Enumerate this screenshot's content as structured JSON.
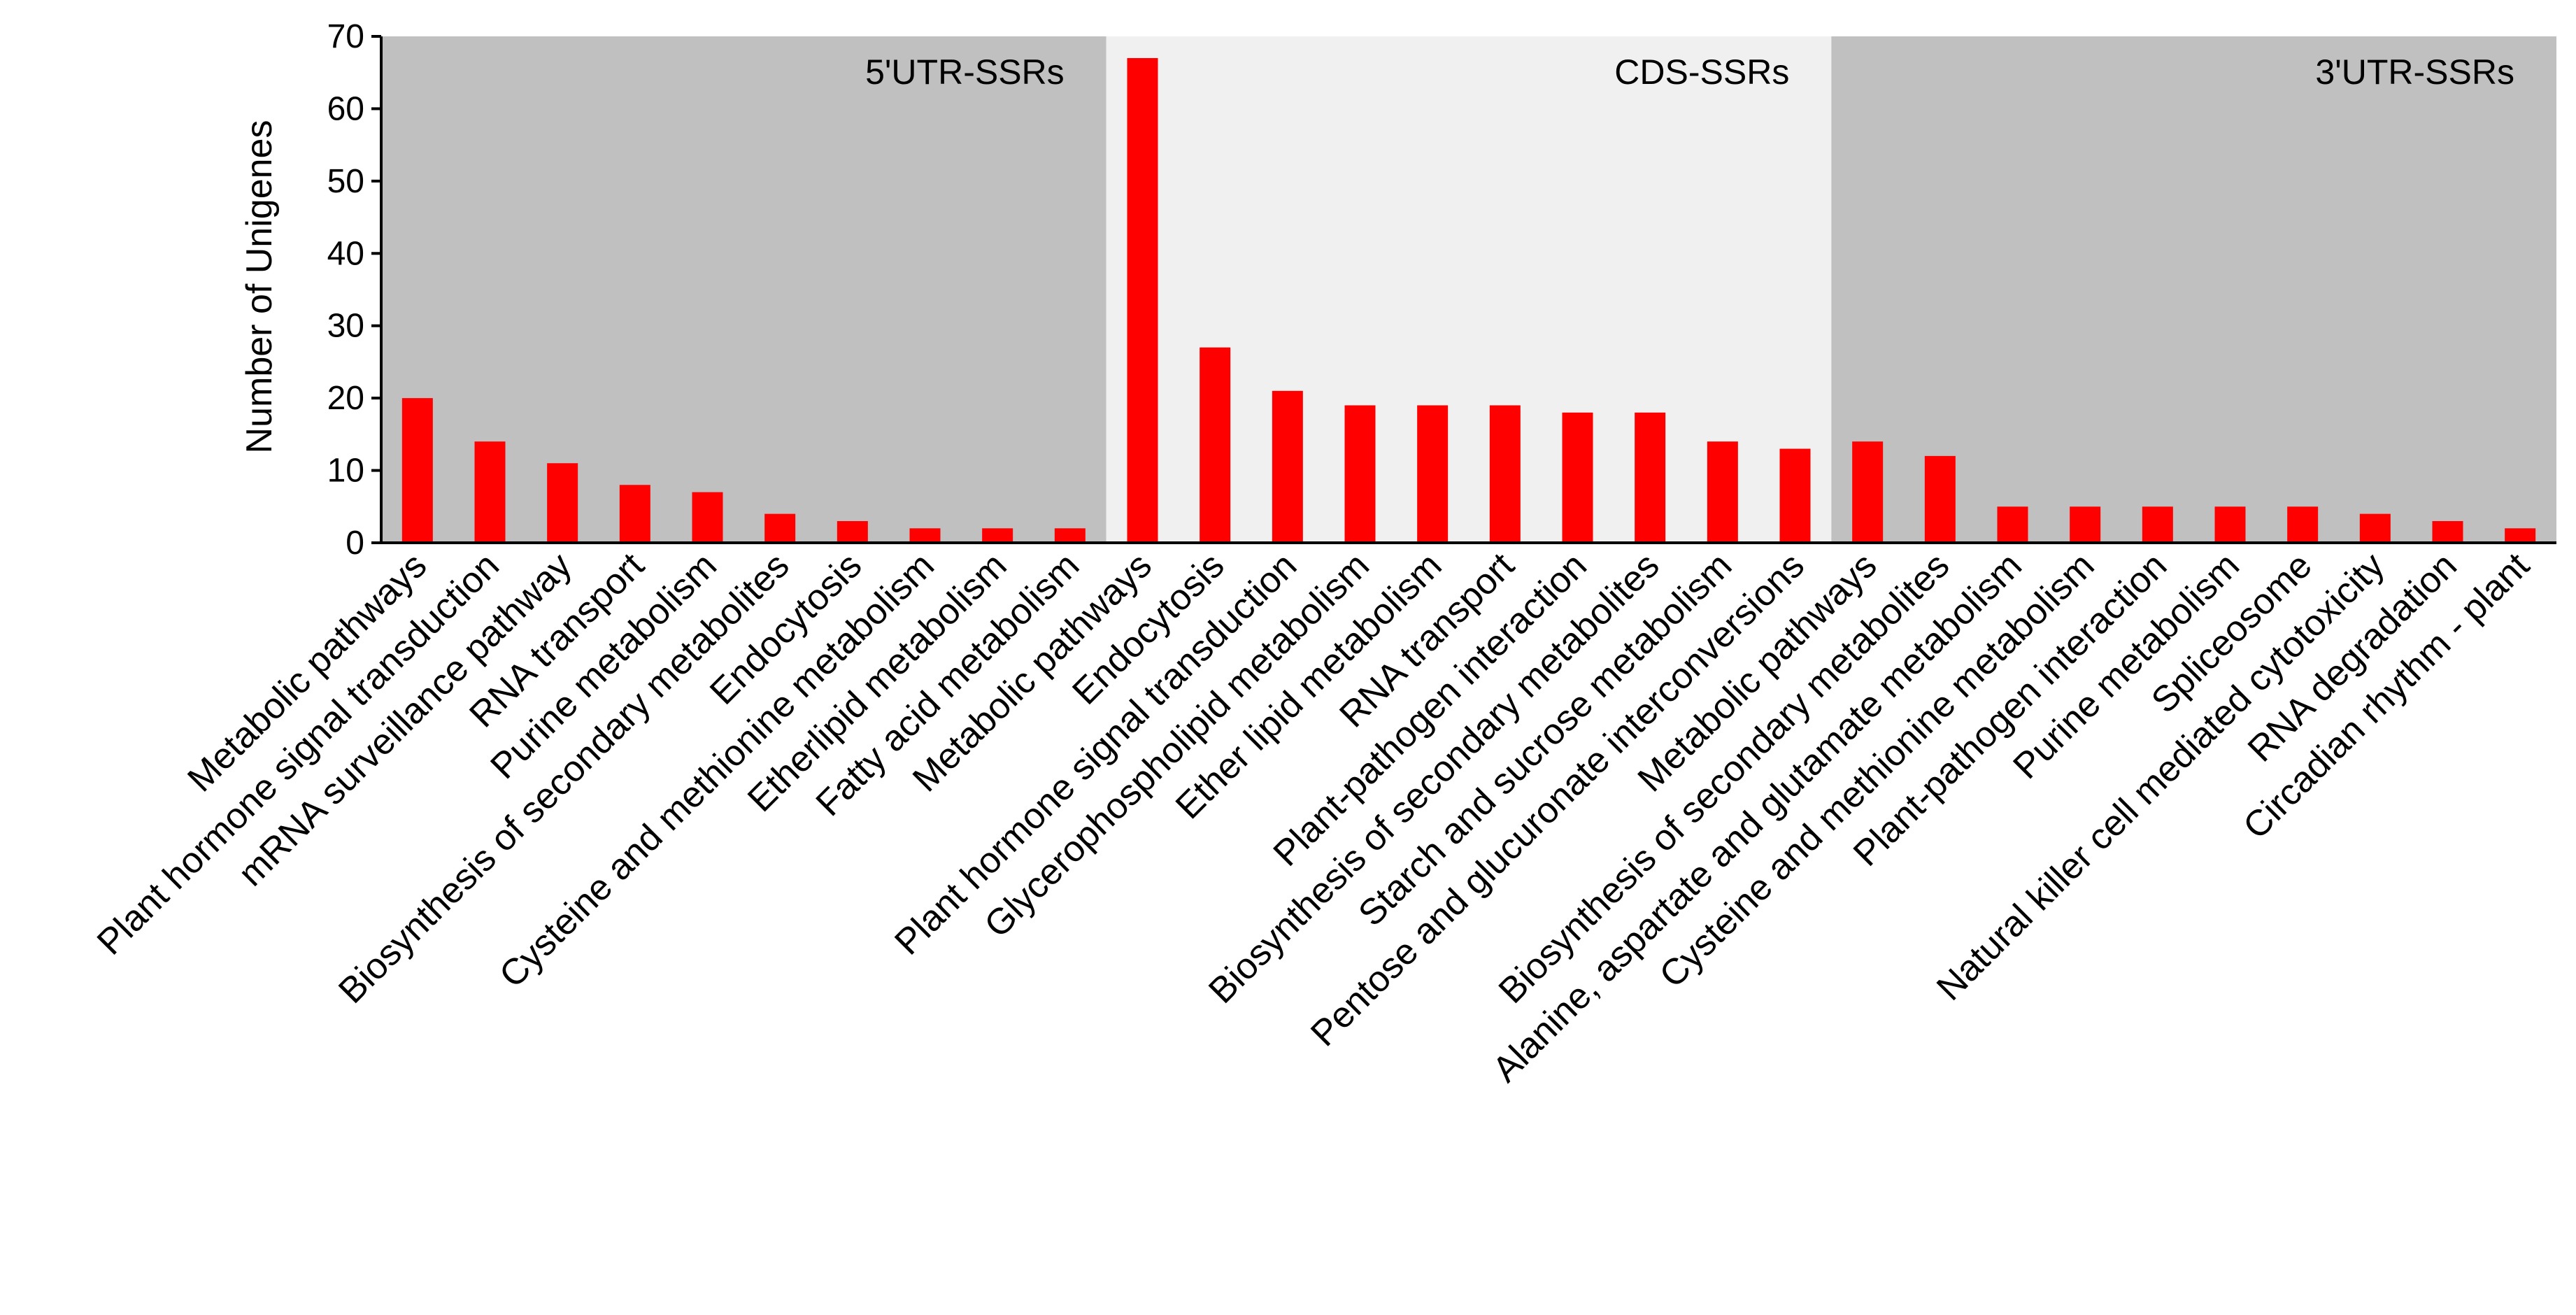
{
  "chart_data": {
    "type": "bar",
    "ylabel": "Number of Unigenes",
    "xlabel": "",
    "ylim": [
      0,
      70
    ],
    "yticks": [
      "0",
      "10",
      "20",
      "30",
      "40",
      "50",
      "60",
      "70"
    ],
    "grid": false,
    "colors": {
      "bar": "#ff0000",
      "region_dark": "#c0c0c0",
      "region_light": "#f0f0f0"
    },
    "regions": [
      {
        "label": "5'UTR-SSRs",
        "start_index": 0,
        "end_index": 9,
        "shade": "dark"
      },
      {
        "label": "CDS-SSRs",
        "start_index": 10,
        "end_index": 19,
        "shade": "light"
      },
      {
        "label": "3'UTR-SSRs",
        "start_index": 20,
        "end_index": 29,
        "shade": "dark"
      }
    ],
    "categories": [
      "Metabolic pathways",
      "Plant hormone signal transduction",
      "mRNA surveillance pathway",
      "RNA transport",
      "Purine metabolism",
      "Biosynthesis of secondary metabolites",
      "Endocytosis",
      "Cysteine and methionine metabolism",
      "Etherlipid metabolism",
      "Fatty acid metabolism",
      "Metabolic pathways",
      "Endocytosis",
      "Plant hormone signal transduction",
      "Glycerophospholipid metabolism",
      "Ether lipid metabolism",
      "RNA transport",
      "Plant-pathogen interaction",
      "Biosynthesis of secondary metabolites",
      "Starch and sucrose metabolism",
      "Pentose and glucuronate interconversions",
      "Metabolic pathways",
      "Biosynthesis of secondary metabolites",
      "Alanine, aspartate and glutamate metabolism",
      "Cysteine and methionine metabolism",
      "Plant-pathogen interaction",
      "Purine metabolism",
      "Spliceosome",
      "Natural killer cell mediated cytotoxicity",
      "RNA degradation",
      "Circadian rhythm - plant"
    ],
    "values": [
      20,
      14,
      11,
      8,
      7,
      4,
      3,
      2,
      2,
      2,
      67,
      27,
      21,
      19,
      19,
      19,
      18,
      18,
      14,
      13,
      14,
      12,
      5,
      5,
      5,
      5,
      5,
      4,
      3,
      2
    ]
  }
}
